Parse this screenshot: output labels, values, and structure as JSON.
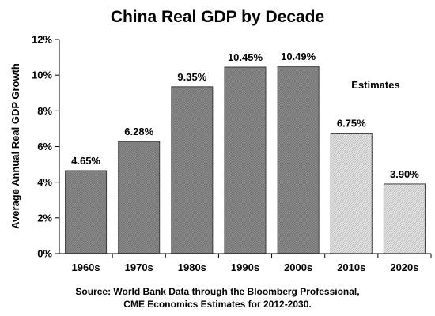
{
  "chart_data": {
    "type": "bar",
    "title": "China Real GDP by Decade",
    "ylabel": "Average Annual Real GDP Growth",
    "xlabel": "",
    "ylim": [
      0,
      12
    ],
    "ytick_values": [
      0,
      2,
      4,
      6,
      8,
      10,
      12
    ],
    "ytick_labels": [
      "0%",
      "2%",
      "4%",
      "6%",
      "8%",
      "10%",
      "12%"
    ],
    "categories": [
      "1960s",
      "1970s",
      "1980s",
      "1990s",
      "2000s",
      "2010s",
      "2020s"
    ],
    "values": [
      4.65,
      6.28,
      9.35,
      10.45,
      10.49,
      6.75,
      3.9
    ],
    "value_labels": [
      "4.65%",
      "6.28%",
      "9.35%",
      "10.45%",
      "10.49%",
      "6.75%",
      "3.90%"
    ],
    "is_estimate": [
      false,
      false,
      false,
      false,
      false,
      true,
      true
    ],
    "annotation": "Estimates",
    "source_lines": [
      "Source: World Bank Data through the Bloomberg Professional,",
      "CME Economics Estimates for 2012-2030."
    ],
    "grid": false,
    "legend": "none",
    "colors": {
      "actual_fill": "#808080",
      "estimate_fill": "#d6d6d6",
      "bar_stroke": "#3a3a3a",
      "axis": "#000000"
    }
  }
}
